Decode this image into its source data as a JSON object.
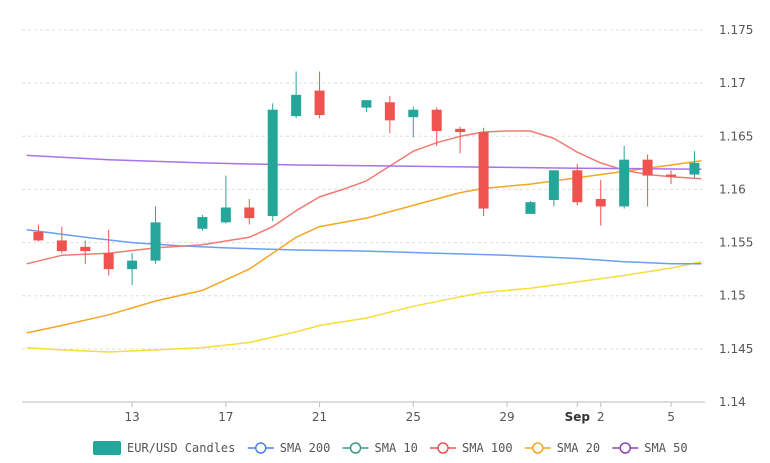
{
  "chart_data": {
    "type": "candlestick",
    "title": "",
    "xlabel": "",
    "ylabel": "",
    "ylim": [
      1.14,
      1.175
    ],
    "y_ticks": [
      "1.14",
      "1.145",
      "1.15",
      "1.155",
      "1.16",
      "1.165",
      "1.17",
      "1.175"
    ],
    "x_ticks": [
      {
        "label": "13",
        "day": 13,
        "bold": false
      },
      {
        "label": "17",
        "day": 17,
        "bold": false
      },
      {
        "label": "21",
        "day": 21,
        "bold": false
      },
      {
        "label": "25",
        "day": 25,
        "bold": false
      },
      {
        "label": "29",
        "day": 29,
        "bold": false
      },
      {
        "label": "Sep",
        "day": 32,
        "bold": true
      },
      {
        "label": "2",
        "day": 33,
        "bold": false
      },
      {
        "label": "5",
        "day": 36,
        "bold": false
      }
    ],
    "grid": "horizontal dashed",
    "legend_position": "bottom",
    "candles": {
      "name": "EUR/USD Candles",
      "up_color": "#26a69a",
      "down_color": "#ef5350",
      "data": [
        {
          "day": 9,
          "open": 1.156,
          "high": 1.1567,
          "low": 1.1551,
          "close": 1.1552
        },
        {
          "day": 10,
          "open": 1.1552,
          "high": 1.1565,
          "low": 1.154,
          "close": 1.1542
        },
        {
          "day": 11,
          "open": 1.1546,
          "high": 1.1552,
          "low": 1.153,
          "close": 1.1542
        },
        {
          "day": 12,
          "open": 1.154,
          "high": 1.1562,
          "low": 1.1519,
          "close": 1.1525
        },
        {
          "day": 13,
          "open": 1.1525,
          "high": 1.154,
          "low": 1.151,
          "close": 1.1533
        },
        {
          "day": 14,
          "open": 1.1533,
          "high": 1.1584,
          "low": 1.153,
          "close": 1.1569
        },
        {
          "day": 16,
          "open": 1.1563,
          "high": 1.1576,
          "low": 1.1561,
          "close": 1.1574
        },
        {
          "day": 17,
          "open": 1.1569,
          "high": 1.1613,
          "low": 1.1568,
          "close": 1.1583
        },
        {
          "day": 18,
          "open": 1.1583,
          "high": 1.1591,
          "low": 1.1567,
          "close": 1.1573
        },
        {
          "day": 19,
          "open": 1.1575,
          "high": 1.1681,
          "low": 1.157,
          "close": 1.1675
        },
        {
          "day": 20,
          "open": 1.1669,
          "high": 1.1711,
          "low": 1.1667,
          "close": 1.1689
        },
        {
          "day": 21,
          "open": 1.1693,
          "high": 1.1711,
          "low": 1.1667,
          "close": 1.167
        },
        {
          "day": 23,
          "open": 1.1677,
          "high": 1.1684,
          "low": 1.1673,
          "close": 1.1684
        },
        {
          "day": 24,
          "open": 1.1682,
          "high": 1.1688,
          "low": 1.1653,
          "close": 1.1665
        },
        {
          "day": 25,
          "open": 1.1668,
          "high": 1.1678,
          "low": 1.1649,
          "close": 1.1675
        },
        {
          "day": 26,
          "open": 1.1675,
          "high": 1.1677,
          "low": 1.1641,
          "close": 1.1655
        },
        {
          "day": 27,
          "open": 1.1657,
          "high": 1.1659,
          "low": 1.1634,
          "close": 1.1654
        },
        {
          "day": 28,
          "open": 1.1654,
          "high": 1.1658,
          "low": 1.1575,
          "close": 1.1582
        },
        {
          "day": 30,
          "open": 1.1577,
          "high": 1.1589,
          "low": 1.1577,
          "close": 1.1588
        },
        {
          "day": 31,
          "open": 1.159,
          "high": 1.1618,
          "low": 1.1584,
          "close": 1.1618
        },
        {
          "day": 32,
          "open": 1.1618,
          "high": 1.1624,
          "low": 1.1585,
          "close": 1.1588
        },
        {
          "day": 33,
          "open": 1.1591,
          "high": 1.1609,
          "low": 1.1566,
          "close": 1.1584
        },
        {
          "day": 34,
          "open": 1.1584,
          "high": 1.1641,
          "low": 1.1582,
          "close": 1.1628
        },
        {
          "day": 35,
          "open": 1.1628,
          "high": 1.1633,
          "low": 1.1584,
          "close": 1.1613
        },
        {
          "day": 36,
          "open": 1.1614,
          "high": 1.1618,
          "low": 1.1605,
          "close": 1.1612
        },
        {
          "day": 37,
          "open": 1.1614,
          "high": 1.1636,
          "low": 1.1611,
          "close": 1.1625
        }
      ]
    },
    "series": [
      {
        "name": "SMA 200",
        "color": "#6b9ef0",
        "x": [
          8.5,
          11,
          13,
          15,
          17,
          20,
          23,
          26,
          29,
          32,
          34,
          36,
          37.3
        ],
        "y": [
          1.1562,
          1.1555,
          1.155,
          1.1547,
          1.1545,
          1.1543,
          1.1542,
          1.154,
          1.1538,
          1.1535,
          1.1532,
          1.153,
          1.153
        ]
      },
      {
        "name": "SMA 10",
        "color": "#5aa89a",
        "x": [],
        "y": []
      },
      {
        "name": "SMA 100",
        "color": "#f07b72",
        "x": [
          8.5,
          10,
          12,
          14,
          16,
          18,
          19,
          20,
          21,
          22,
          23,
          24,
          25,
          26,
          27,
          28,
          29,
          30,
          31,
          32,
          33,
          34,
          35,
          36,
          37.3
        ],
        "y": [
          1.153,
          1.1538,
          1.154,
          1.1545,
          1.1548,
          1.1555,
          1.1565,
          1.158,
          1.1593,
          1.16,
          1.1608,
          1.1622,
          1.1636,
          1.1644,
          1.165,
          1.1654,
          1.1655,
          1.1655,
          1.1648,
          1.1635,
          1.1625,
          1.1618,
          1.1614,
          1.1612,
          1.161
        ]
      },
      {
        "name": "SMA 20",
        "color": "#f5a623",
        "x": [
          8.5,
          10,
          12,
          14,
          16,
          18,
          20,
          21,
          23,
          25,
          27,
          28,
          30,
          32,
          34,
          36,
          37.3
        ],
        "y": [
          1.1465,
          1.1472,
          1.1482,
          1.1495,
          1.1505,
          1.1525,
          1.1555,
          1.1565,
          1.1573,
          1.1585,
          1.1597,
          1.1601,
          1.1605,
          1.1611,
          1.1617,
          1.1623,
          1.1627
        ]
      },
      {
        "name": "SMA 50",
        "color": "#a872e8",
        "x": [
          8.5,
          12,
          16,
          20,
          24,
          28,
          32,
          37.3
        ],
        "y": [
          1.1632,
          1.1628,
          1.1625,
          1.1623,
          1.1622,
          1.1621,
          1.162,
          1.1619
        ]
      },
      {
        "name": "",
        "color": "#f7dc3a",
        "x": [
          8.5,
          10,
          12,
          14,
          16,
          18,
          20,
          21,
          23,
          25,
          27,
          28,
          30,
          32,
          34,
          36,
          37.3
        ],
        "y": [
          1.1451,
          1.1449,
          1.1447,
          1.1449,
          1.1451,
          1.1456,
          1.1466,
          1.1472,
          1.1479,
          1.149,
          1.1499,
          1.1503,
          1.1507,
          1.1513,
          1.1519,
          1.1526,
          1.1532
        ]
      }
    ],
    "legend": [
      {
        "label": "EUR/USD Candles",
        "color": "#26a69a",
        "kind": "box"
      },
      {
        "label": "SMA 200",
        "color": "#4f7fe6",
        "kind": "line"
      },
      {
        "label": "SMA 10",
        "color": "#3a9a87",
        "kind": "line"
      },
      {
        "label": "SMA 100",
        "color": "#ef5350",
        "kind": "line"
      },
      {
        "label": "SMA 20",
        "color": "#f5a623",
        "kind": "line"
      },
      {
        "label": "SMA 50",
        "color": "#8e44ad",
        "kind": "line"
      }
    ]
  }
}
